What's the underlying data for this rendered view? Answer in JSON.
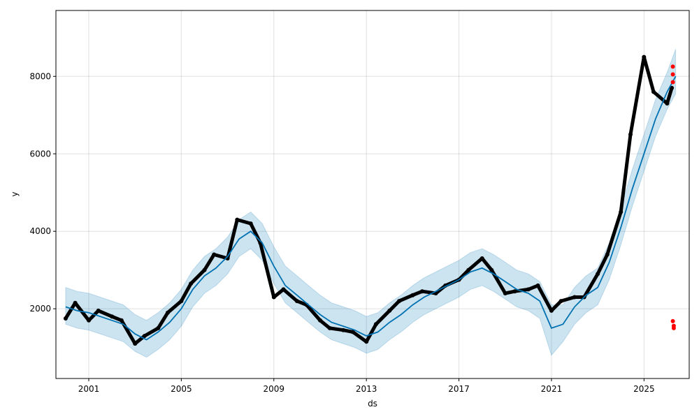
{
  "chart_data": {
    "type": "line",
    "title": "",
    "xlabel": "ds",
    "ylabel": "y",
    "xlim": [
      "1999-08-01",
      "2026-12-15"
    ],
    "ylim": [
      200,
      9700
    ],
    "x_ticks": [
      "2001",
      "2005",
      "2009",
      "2013",
      "2017",
      "2021",
      "2025"
    ],
    "y_ticks": [
      2000,
      4000,
      6000,
      8000
    ],
    "grid": true,
    "legend": "none",
    "colors": {
      "forecast_line": "#0072B2",
      "uncertainty_band": "#0072B2",
      "observed_points": "#000000",
      "outlier_points": "#ff0000"
    },
    "series": [
      {
        "role": "forecast_line",
        "x": [
          "2000-01-01",
          "2000-07-01",
          "2001-01-01",
          "2001-07-01",
          "2002-01-01",
          "2002-07-01",
          "2003-01-01",
          "2003-07-01",
          "2004-01-01",
          "2004-07-01",
          "2005-01-01",
          "2005-07-01",
          "2006-01-01",
          "2006-07-01",
          "2007-01-01",
          "2007-07-01",
          "2008-01-01",
          "2008-07-01",
          "2009-01-01",
          "2009-07-01",
          "2010-01-01",
          "2010-07-01",
          "2011-01-01",
          "2011-07-01",
          "2012-01-01",
          "2012-07-01",
          "2013-01-01",
          "2013-07-01",
          "2014-01-01",
          "2014-07-01",
          "2015-01-01",
          "2015-07-01",
          "2016-01-01",
          "2016-07-01",
          "2017-01-01",
          "2017-07-01",
          "2018-01-01",
          "2018-07-01",
          "2019-01-01",
          "2019-07-01",
          "2020-01-01",
          "2020-07-01",
          "2021-01-01",
          "2021-07-01",
          "2022-01-01",
          "2022-07-01",
          "2023-01-01",
          "2023-07-01",
          "2024-01-01",
          "2024-07-01",
          "2025-01-01",
          "2025-07-01",
          "2026-01-01",
          "2026-05-15"
        ],
        "y": [
          2050,
          1950,
          1900,
          1800,
          1700,
          1600,
          1350,
          1200,
          1400,
          1650,
          2000,
          2500,
          2850,
          3050,
          3350,
          3800,
          4000,
          3700,
          3100,
          2600,
          2350,
          2100,
          1850,
          1650,
          1550,
          1450,
          1300,
          1400,
          1650,
          1850,
          2100,
          2300,
          2450,
          2600,
          2750,
          2950,
          3050,
          2900,
          2700,
          2500,
          2400,
          2200,
          1500,
          1600,
          2050,
          2350,
          2550,
          3200,
          4100,
          5100,
          6000,
          6900,
          7600,
          8000
        ],
        "lower": [
          1600,
          1500,
          1450,
          1350,
          1250,
          1150,
          900,
          750,
          950,
          1200,
          1550,
          2050,
          2400,
          2600,
          2900,
          3350,
          3550,
          3250,
          2650,
          2150,
          1900,
          1650,
          1400,
          1200,
          1100,
          1000,
          850,
          950,
          1200,
          1400,
          1650,
          1850,
          2000,
          2150,
          2300,
          2500,
          2600,
          2450,
          2250,
          2050,
          1950,
          1750,
          800,
          1150,
          1600,
          1900,
          2100,
          2750,
          3650,
          4650,
          5550,
          6450,
          7150,
          7550
        ],
        "upper": [
          2550,
          2450,
          2400,
          2300,
          2200,
          2100,
          1850,
          1700,
          1900,
          2150,
          2500,
          3000,
          3350,
          3550,
          3850,
          4300,
          4500,
          4200,
          3600,
          3100,
          2850,
          2600,
          2350,
          2150,
          2050,
          1950,
          1800,
          1900,
          2150,
          2350,
          2600,
          2800,
          2950,
          3100,
          3250,
          3450,
          3550,
          3400,
          3200,
          3000,
          2900,
          2700,
          2100,
          2100,
          2550,
          2850,
          3050,
          3700,
          4600,
          5600,
          6500,
          7400,
          8100,
          8700
        ]
      },
      {
        "role": "observed_points",
        "x": [
          "2000-01-01",
          "2000-06-01",
          "2001-01-01",
          "2001-06-01",
          "2002-01-01",
          "2002-06-01",
          "2003-01-01",
          "2003-06-01",
          "2004-01-01",
          "2004-06-01",
          "2005-01-01",
          "2005-06-01",
          "2006-01-01",
          "2006-06-01",
          "2007-01-01",
          "2007-06-01",
          "2008-01-01",
          "2008-06-01",
          "2009-01-01",
          "2009-06-01",
          "2010-01-01",
          "2010-06-01",
          "2011-01-01",
          "2011-06-01",
          "2012-01-01",
          "2012-06-01",
          "2013-01-01",
          "2013-06-01",
          "2014-01-01",
          "2014-06-01",
          "2015-01-01",
          "2015-06-01",
          "2016-01-01",
          "2016-06-01",
          "2017-01-01",
          "2017-06-01",
          "2018-01-01",
          "2018-06-01",
          "2019-01-01",
          "2019-06-01",
          "2020-01-01",
          "2020-06-01",
          "2021-01-01",
          "2021-06-01",
          "2022-01-01",
          "2022-06-01",
          "2023-01-01",
          "2023-06-01",
          "2024-01-01",
          "2024-06-01",
          "2025-01-01",
          "2025-06-01",
          "2026-01-01",
          "2026-03-15"
        ],
        "y": [
          1750,
          2150,
          1700,
          1950,
          1800,
          1700,
          1100,
          1300,
          1500,
          1900,
          2200,
          2650,
          3000,
          3400,
          3300,
          4300,
          4200,
          3700,
          2300,
          2500,
          2200,
          2100,
          1700,
          1500,
          1450,
          1400,
          1150,
          1600,
          1950,
          2200,
          2350,
          2450,
          2400,
          2600,
          2750,
          3000,
          3300,
          3000,
          2400,
          2450,
          2500,
          2600,
          1950,
          2200,
          2300,
          2300,
          2900,
          3400,
          4500,
          6500,
          8500,
          7600,
          7300,
          7700
        ]
      },
      {
        "role": "outlier_points",
        "x": [
          "2026-04-01",
          "2026-04-01",
          "2026-04-01",
          "2026-04-01",
          "2026-04-15",
          "2026-04-15"
        ],
        "y": [
          8250,
          8050,
          7850,
          1680,
          1560,
          1500
        ]
      }
    ]
  }
}
